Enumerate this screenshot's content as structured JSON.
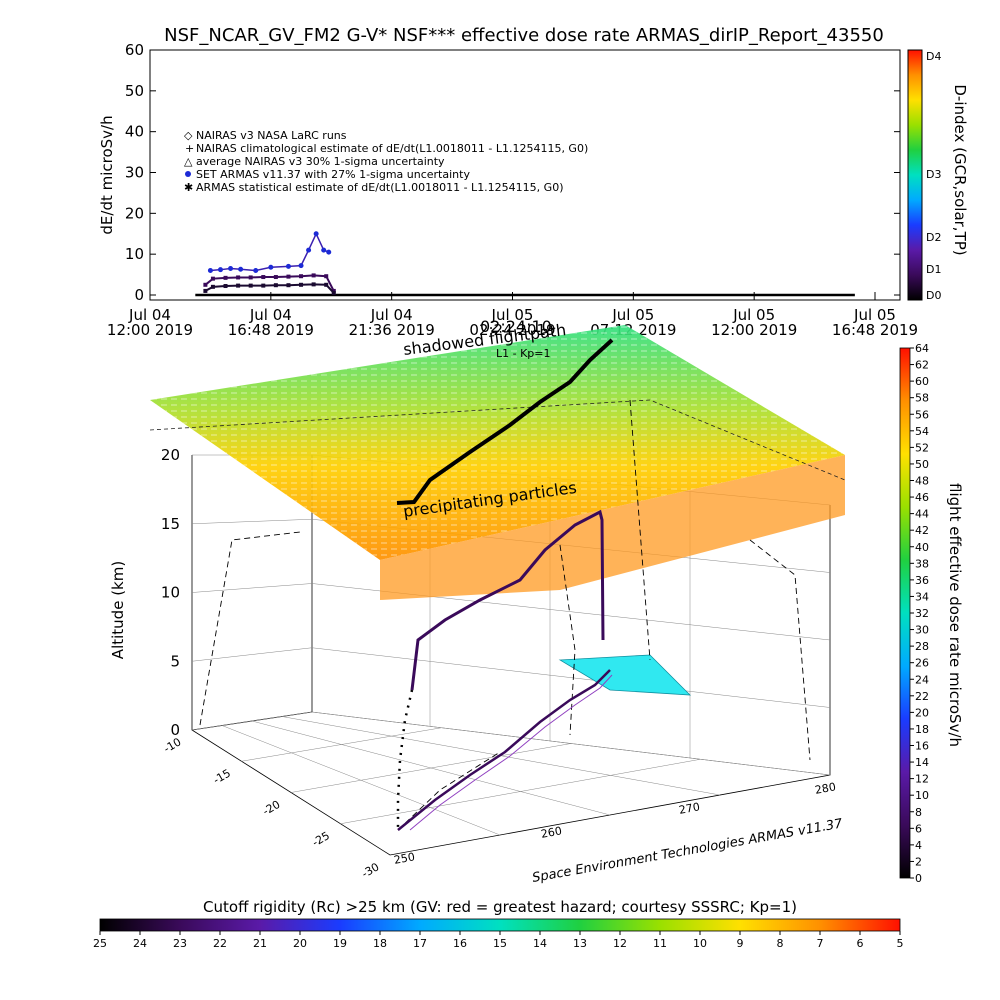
{
  "title": "NSF_NCAR_GV_FM2 G-V* NSF*** effective dose rate ARMAS_dirIP_Report_43550",
  "chart_data": [
    {
      "type": "scatter",
      "ylabel": "dE/dt microSv/h",
      "ylim": [
        0,
        60
      ],
      "yticks": [
        "0",
        "10",
        "20",
        "30",
        "40",
        "50",
        "60"
      ],
      "xlim": [
        0,
        28.8
      ],
      "xticks": [
        {
          "line1": "Jul 04",
          "line2": "12:00 2019",
          "t": 0
        },
        {
          "line1": "Jul 04",
          "line2": "16:48 2019",
          "t": 4.8
        },
        {
          "line1": "Jul 04",
          "line2": "21:36 2019",
          "t": 9.6
        },
        {
          "line1": "Jul 05",
          "line2": "02:24 2019",
          "t": 14.4
        },
        {
          "line1": "Jul 05",
          "line2": "07:12 2019",
          "t": 19.2
        },
        {
          "line1": "Jul 05",
          "line2": "12:00 2019",
          "t": 24.0
        },
        {
          "line1": "Jul 05",
          "line2": "16:48 2019",
          "t": 28.8
        }
      ],
      "legend": [
        {
          "symbol": "diamond",
          "text": "NAIRAS v3 NASA LaRC runs"
        },
        {
          "symbol": "plus",
          "text": "NAIRAS climatological estimate of dE/dt(L1.0018011 - L1.1254115, G0)"
        },
        {
          "symbol": "triangle",
          "text": "average NAIRAS v3 30% 1-sigma uncertainty"
        },
        {
          "symbol": "dot",
          "text": "SET ARMAS v11.37 with 27% 1-sigma uncertainty"
        },
        {
          "symbol": "star",
          "text": "ARMAS statistical estimate of dE/dt(L1.0018011 - L1.1254115, G0)"
        }
      ],
      "series": [
        {
          "name": "NAIRAS climatological estimate",
          "x": [
            2.2,
            2.5,
            3.0,
            3.5,
            4.0,
            4.5,
            5.0,
            5.5,
            6.0,
            6.5,
            7.0,
            7.3
          ],
          "y": [
            2.5,
            4.0,
            4.2,
            4.3,
            4.3,
            4.4,
            4.4,
            4.5,
            4.6,
            4.8,
            4.6,
            1.0
          ]
        },
        {
          "name": "ARMAS statistical estimate",
          "x": [
            2.2,
            2.5,
            3.0,
            3.5,
            4.0,
            4.5,
            5.0,
            5.5,
            6.0,
            6.5,
            7.0,
            7.3
          ],
          "y": [
            1.0,
            2.0,
            2.2,
            2.3,
            2.3,
            2.3,
            2.4,
            2.4,
            2.5,
            2.6,
            2.5,
            0.5
          ]
        },
        {
          "name": "SET ARMAS v11.37",
          "x": [
            2.4,
            2.8,
            3.2,
            3.6,
            4.2,
            4.8,
            5.5,
            6.0,
            6.3,
            6.6,
            6.9,
            7.1
          ],
          "y": [
            6.0,
            6.2,
            6.5,
            6.3,
            6.0,
            6.8,
            7.0,
            7.2,
            11.0,
            15.0,
            11.0,
            10.5
          ]
        }
      ],
      "baseline_y": 0,
      "right_axis": {
        "label": "D-index (GCR,solar,TP)",
        "ticks": [
          "D0",
          "D1",
          "D2",
          "D3",
          "D4"
        ]
      }
    },
    {
      "type": "scatter",
      "zlabel": "Altitude (km)",
      "zlim": [
        0,
        20
      ],
      "zticks": [
        "0",
        "5",
        "10",
        "15",
        "20"
      ],
      "lat_ticks": [
        "-10",
        "-15",
        "-20",
        "-25",
        "-30"
      ],
      "lon_ticks": [
        "250",
        "260",
        "270",
        "280"
      ],
      "colorbar": {
        "label": "flight effective dose rate microSv/h",
        "ticks": [
          "0",
          "2",
          "4",
          "6",
          "8",
          "10",
          "12",
          "14",
          "16",
          "18",
          "20",
          "22",
          "24",
          "26",
          "28",
          "30",
          "32",
          "34",
          "36",
          "38",
          "40",
          "42",
          "44",
          "46",
          "48",
          "50",
          "52",
          "54",
          "56",
          "58",
          "60",
          "62",
          "64"
        ]
      },
      "cutoff_bar": {
        "label": "Cutoff rigidity (Rc) >25 km (GV: red = greatest hazard; courtesy SSSRC; Kp=1)",
        "ticks": [
          "25",
          "24",
          "23",
          "22",
          "21",
          "20",
          "19",
          "18",
          "17",
          "16",
          "15",
          "14",
          "13",
          "12",
          "11",
          "10",
          "9",
          "8",
          "7",
          "6",
          "5"
        ]
      },
      "annotations": {
        "shadowed": "shadowed flightpath",
        "precip": "precipitating particles",
        "time": "02:24:10",
        "l1": "L1 - Kp=1",
        "footer": "Space Environment Technologies ARMAS v11.37"
      }
    }
  ]
}
